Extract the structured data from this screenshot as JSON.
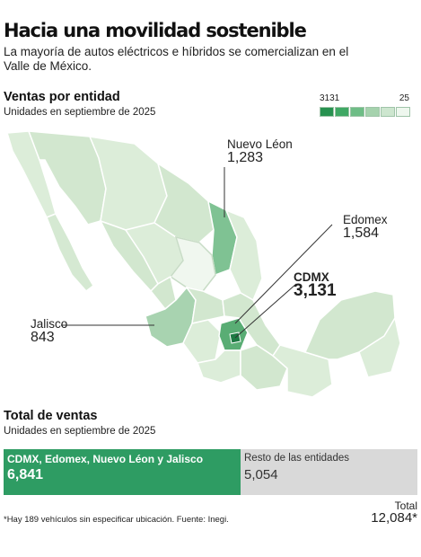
{
  "header": {
    "title": "Hacia una movilidad sostenible",
    "subtitle": "La mayoría de autos eléctricos e híbridos se comercializan en el Valle de México."
  },
  "sales_by_state": {
    "title": "Ventas por entidad",
    "subtitle": "Unidades en septiembre de 2025",
    "legend": {
      "max": "3131",
      "min": "25",
      "colors": [
        "#27914f",
        "#3fa864",
        "#6ebd86",
        "#a5d2ad",
        "#cde6cf",
        "#eef7ee"
      ]
    },
    "callouts": [
      {
        "name": "Nuevo Léon",
        "value": "1,283"
      },
      {
        "name": "Edomex",
        "value": "1,584"
      },
      {
        "name": "CDMX",
        "value": "3,131"
      },
      {
        "name": "Jalisco",
        "value": "843"
      }
    ]
  },
  "total_sales": {
    "title": "Total de ventas",
    "subtitle": "Unidades en septiembre de 2025",
    "group_a": {
      "label": "CDMX, Edomex, Nuevo Léon y Jalisco",
      "value": "6,841"
    },
    "group_b": {
      "label": "Resto de las entidades",
      "value": "5,054"
    },
    "total": {
      "label": "Total",
      "value": "12,084*"
    }
  },
  "footnote": "*Hay 189 vehículos sin especificar ubicación. Fuente: Inegi.",
  "colors": {
    "map_base": "#dcedd9",
    "map_border": "#ffffff",
    "bar_green": "#2e9c63",
    "bar_gray": "#d9d9d9"
  }
}
